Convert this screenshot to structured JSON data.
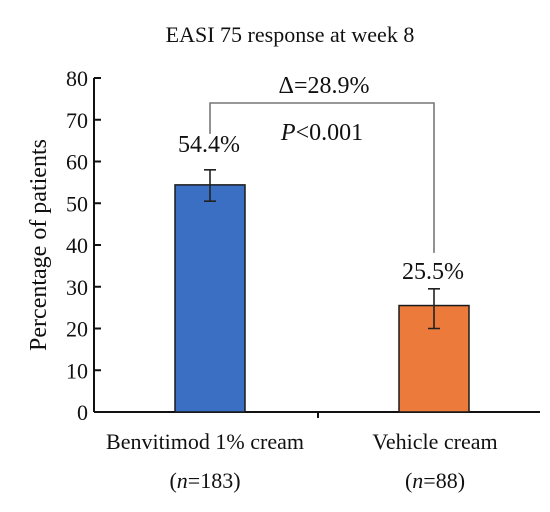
{
  "chart_data": {
    "type": "bar",
    "title": "EASI 75 response at week 8",
    "ylabel": "Percentage of patients",
    "xlabel": "",
    "ylim": [
      0,
      80
    ],
    "yticks": [
      0,
      10,
      20,
      30,
      40,
      50,
      60,
      70,
      80
    ],
    "grid": false,
    "legend": "none",
    "categories": [
      {
        "name": "Benvitimod 1% cream",
        "n_prefix": "(",
        "n_symbol": "n",
        "n_text": "=183)"
      },
      {
        "name": "Vehicle cream",
        "n_prefix": "(",
        "n_symbol": "n",
        "n_text": "=88)"
      }
    ],
    "values": [
      54.4,
      25.5
    ],
    "value_labels": [
      "54.4%",
      "25.5%"
    ],
    "error_bars": [
      {
        "low": 50.5,
        "high": 58.0
      },
      {
        "low": 20.0,
        "high": 29.5
      }
    ],
    "colors": [
      "#3a6fc4",
      "#ec7a3a"
    ],
    "annotation": {
      "delta": "Δ=28.9%",
      "p_symbol": "P",
      "p_text": "<0.001"
    }
  }
}
